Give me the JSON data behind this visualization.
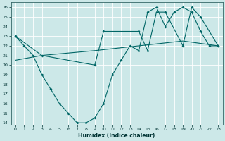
{
  "xlabel": "Humidex (Indice chaleur)",
  "xlim": [
    -0.5,
    23.5
  ],
  "ylim": [
    13.8,
    26.5
  ],
  "yticks": [
    14,
    15,
    16,
    17,
    18,
    19,
    20,
    21,
    22,
    23,
    24,
    25,
    26
  ],
  "xticks": [
    0,
    1,
    2,
    3,
    4,
    5,
    6,
    7,
    8,
    9,
    10,
    11,
    12,
    13,
    14,
    15,
    16,
    17,
    18,
    19,
    20,
    21,
    22,
    23
  ],
  "background_color": "#cce8e8",
  "grid_color": "#aed4d4",
  "line_color": "#006666",
  "line1_x": [
    0,
    1,
    2,
    3,
    4,
    5,
    6,
    7,
    8,
    9,
    10,
    11,
    12,
    13,
    14,
    15,
    16,
    17,
    18,
    19,
    20,
    21,
    22,
    23
  ],
  "line1_y": [
    23.0,
    22.0,
    21.0,
    19.0,
    17.5,
    16.0,
    15.0,
    14.0,
    14.0,
    14.5,
    16.0,
    19.0,
    20.5,
    22.0,
    21.5,
    25.5,
    26.0,
    24.0,
    25.5,
    26.0,
    25.5,
    23.5,
    22.0,
    22.0
  ],
  "line2_x": [
    0,
    3,
    9,
    10,
    14,
    15,
    16,
    17,
    19,
    20,
    21,
    23
  ],
  "line2_y": [
    23.0,
    21.0,
    20.0,
    23.5,
    23.5,
    21.5,
    25.5,
    25.5,
    22.0,
    26.0,
    25.0,
    22.0
  ],
  "line3_x": [
    0,
    3,
    9,
    14,
    19,
    23
  ],
  "line3_y": [
    20.5,
    21.0,
    21.5,
    22.0,
    22.5,
    22.0
  ]
}
